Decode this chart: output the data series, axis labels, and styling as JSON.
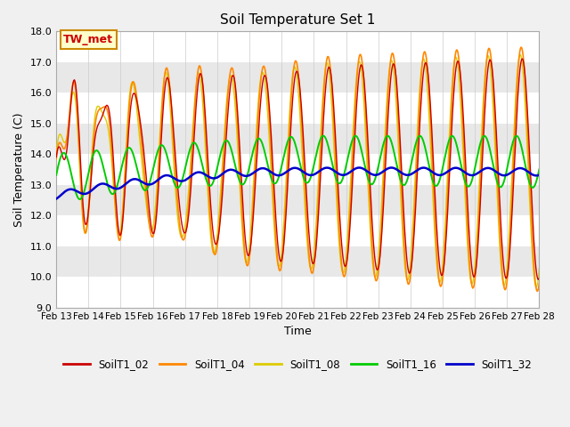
{
  "title": "Soil Temperature Set 1",
  "xlabel": "Time",
  "ylabel": "Soil Temperature (C)",
  "ylim": [
    9.0,
    18.0
  ],
  "yticks": [
    9.0,
    10.0,
    11.0,
    12.0,
    13.0,
    14.0,
    15.0,
    16.0,
    17.0,
    18.0
  ],
  "date_labels": [
    "Feb 13",
    "Feb 14",
    "Feb 15",
    "Feb 16",
    "Feb 17",
    "Feb 18",
    "Feb 19",
    "Feb 20",
    "Feb 21",
    "Feb 22",
    "Feb 23",
    "Feb 24",
    "Feb 25",
    "Feb 26",
    "Feb 27",
    "Feb 28"
  ],
  "annotation_text": "TW_met",
  "annotation_bg": "#ffffcc",
  "annotation_border": "#cc8800",
  "annotation_text_color": "#cc0000",
  "colors": {
    "SoilT1_02": "#cc0000",
    "SoilT1_04": "#ff8800",
    "SoilT1_08": "#ddcc00",
    "SoilT1_16": "#00cc00",
    "SoilT1_32": "#0000cc"
  },
  "plot_bg": "#e8e8e8",
  "fig_bg": "#f0f0f0",
  "stripe_color": "#ffffff",
  "n_points": 720
}
